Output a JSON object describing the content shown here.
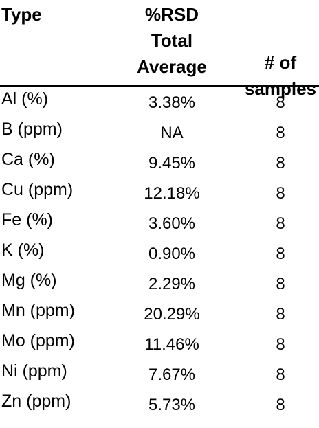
{
  "header": {
    "type_label": "Type",
    "rsd_lines": [
      "%RSD",
      "Total",
      "Average"
    ],
    "samples_lines": [
      "# of",
      "samples"
    ]
  },
  "rows": [
    {
      "type": "Al (%)",
      "rsd": "3.38%",
      "n": "8"
    },
    {
      "type": "B (ppm)",
      "rsd": "NA",
      "n": "8"
    },
    {
      "type": "Ca (%)",
      "rsd": "9.45%",
      "n": "8"
    },
    {
      "type": "Cu (ppm)",
      "rsd": "12.18%",
      "n": "8"
    },
    {
      "type": "Fe (%)",
      "rsd": "3.60%",
      "n": "8"
    },
    {
      "type": "K (%)",
      "rsd": "0.90%",
      "n": "8"
    },
    {
      "type": "Mg (%)",
      "rsd": "2.29%",
      "n": "8"
    },
    {
      "type": "Mn (ppm)",
      "rsd": "20.29%",
      "n": "8"
    },
    {
      "type": "Mo (ppm)",
      "rsd": "11.46%",
      "n": "8"
    },
    {
      "type": "Ni (ppm)",
      "rsd": "7.67%",
      "n": "8"
    },
    {
      "type": "Zn (ppm)",
      "rsd": "5.73%",
      "n": "8"
    }
  ]
}
